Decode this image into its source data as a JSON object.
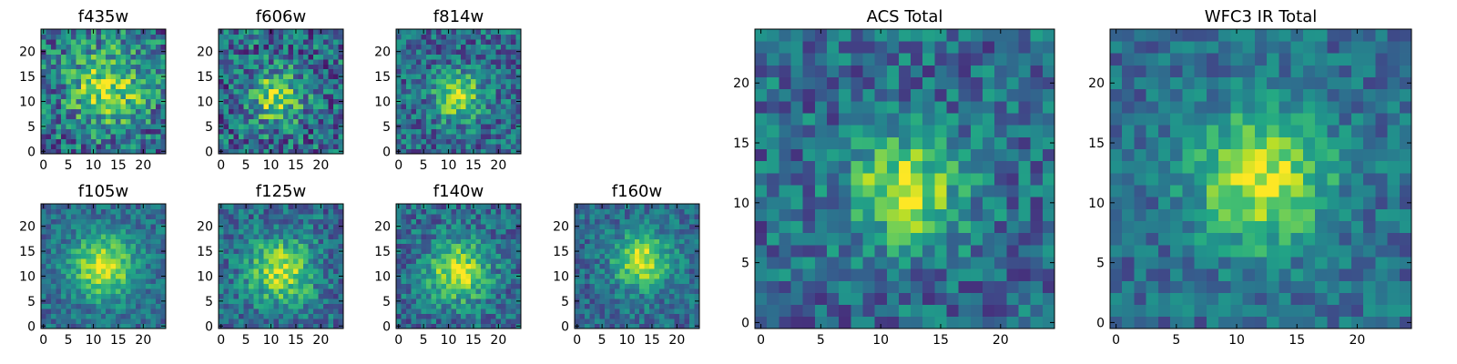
{
  "figure": {
    "colormap": "viridis",
    "background": "#ffffff"
  },
  "chart_data": [
    {
      "type": "heatmap",
      "title": "f435w",
      "grid_size": 25,
      "xlim": [
        -0.5,
        24.5
      ],
      "ylim": [
        -0.5,
        24.5
      ],
      "xticks": [
        "0",
        "5",
        "10",
        "15",
        "20"
      ],
      "yticks": [
        "0",
        "5",
        "10",
        "15",
        "20"
      ],
      "center": [
        13,
        13
      ],
      "peak": 0.78,
      "sigma": 5.5,
      "noise": 0.55,
      "seed": 11
    },
    {
      "type": "heatmap",
      "title": "f606w",
      "grid_size": 25,
      "xlim": [
        -0.5,
        24.5
      ],
      "ylim": [
        -0.5,
        24.5
      ],
      "xticks": [
        "0",
        "5",
        "10",
        "15",
        "20"
      ],
      "yticks": [
        "0",
        "5",
        "10",
        "15",
        "20"
      ],
      "center": [
        11,
        11
      ],
      "peak": 0.8,
      "sigma": 3.5,
      "noise": 0.55,
      "seed": 23
    },
    {
      "type": "heatmap",
      "title": "f814w",
      "grid_size": 25,
      "xlim": [
        -0.5,
        24.5
      ],
      "ylim": [
        -0.5,
        24.5
      ],
      "xticks": [
        "0",
        "5",
        "10",
        "15",
        "20"
      ],
      "yticks": [
        "0",
        "5",
        "10",
        "15",
        "20"
      ],
      "center": [
        12,
        11
      ],
      "peak": 0.85,
      "sigma": 3.2,
      "noise": 0.45,
      "seed": 37
    },
    {
      "type": "heatmap",
      "title": "f105w",
      "grid_size": 25,
      "xlim": [
        -0.5,
        24.5
      ],
      "ylim": [
        -0.5,
        24.5
      ],
      "xticks": [
        "0",
        "5",
        "10",
        "15",
        "20"
      ],
      "yticks": [
        "0",
        "5",
        "10",
        "15",
        "20"
      ],
      "center": [
        12,
        12
      ],
      "peak": 0.9,
      "sigma": 4.5,
      "noise": 0.3,
      "seed": 41
    },
    {
      "type": "heatmap",
      "title": "f125w",
      "grid_size": 25,
      "xlim": [
        -0.5,
        24.5
      ],
      "ylim": [
        -0.5,
        24.5
      ],
      "xticks": [
        "0",
        "5",
        "10",
        "15",
        "20"
      ],
      "yticks": [
        "0",
        "5",
        "10",
        "15",
        "20"
      ],
      "center": [
        12,
        11
      ],
      "peak": 0.85,
      "sigma": 4.5,
      "noise": 0.38,
      "seed": 53
    },
    {
      "type": "heatmap",
      "title": "f140w",
      "grid_size": 25,
      "xlim": [
        -0.5,
        24.5
      ],
      "ylim": [
        -0.5,
        24.5
      ],
      "xticks": [
        "0",
        "5",
        "10",
        "15",
        "20"
      ],
      "yticks": [
        "0",
        "5",
        "10",
        "15",
        "20"
      ],
      "center": [
        12,
        11
      ],
      "peak": 0.9,
      "sigma": 4.2,
      "noise": 0.38,
      "seed": 67
    },
    {
      "type": "heatmap",
      "title": "f160w",
      "grid_size": 25,
      "xlim": [
        -0.5,
        24.5
      ],
      "ylim": [
        -0.5,
        24.5
      ],
      "xticks": [
        "0",
        "5",
        "10",
        "15",
        "20"
      ],
      "yticks": [
        "0",
        "5",
        "10",
        "15",
        "20"
      ],
      "center": [
        13,
        13
      ],
      "peak": 0.9,
      "sigma": 3.8,
      "noise": 0.32,
      "seed": 79
    },
    {
      "type": "heatmap",
      "title": "ACS Total",
      "grid_size": 25,
      "xlim": [
        -0.5,
        24.5
      ],
      "ylim": [
        -0.5,
        24.5
      ],
      "xticks": [
        "0",
        "5",
        "10",
        "15",
        "20"
      ],
      "yticks": [
        "0",
        "5",
        "10",
        "15",
        "20"
      ],
      "center": [
        12,
        11
      ],
      "peak": 0.9,
      "sigma": 3.2,
      "noise": 0.4,
      "seed": 91
    },
    {
      "type": "heatmap",
      "title": "WFC3 IR Total",
      "grid_size": 25,
      "xlim": [
        -0.5,
        24.5
      ],
      "ylim": [
        -0.5,
        24.5
      ],
      "xticks": [
        "0",
        "5",
        "10",
        "15",
        "20"
      ],
      "yticks": [
        "0",
        "5",
        "10",
        "15",
        "20"
      ],
      "center": [
        12,
        12
      ],
      "peak": 0.9,
      "sigma": 4.0,
      "noise": 0.3,
      "seed": 103
    }
  ]
}
